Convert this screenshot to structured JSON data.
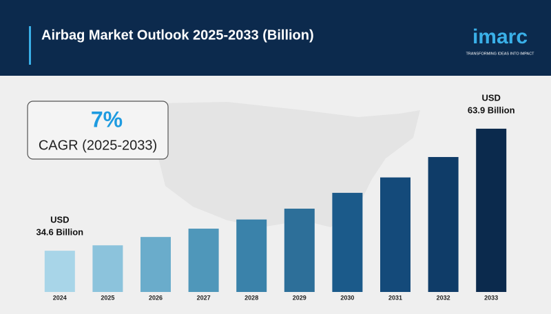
{
  "header": {
    "title": "Airbag Market Outlook 2025-2033 (Billion)",
    "logo": "imarc",
    "tagline": "TRANSFORMING IDEAS INTO IMPACT"
  },
  "cagr": {
    "value": "7%",
    "label": "CAGR (2025-2033)"
  },
  "chart_data": {
    "type": "bar",
    "categories": [
      "2024",
      "2025",
      "2026",
      "2027",
      "2028",
      "2029",
      "2030",
      "2031",
      "2032",
      "2033"
    ],
    "values": [
      34.6,
      35.9,
      37.9,
      39.9,
      42.1,
      44.7,
      48.5,
      52.2,
      57.1,
      63.9
    ],
    "value_labels": [
      "34.6 Billion",
      null,
      null,
      null,
      null,
      null,
      null,
      null,
      null,
      "63.9 Billion"
    ],
    "unit_label": "USD",
    "colors": [
      "#a8d5e8",
      "#8cc3dc",
      "#6aaccb",
      "#4f97ba",
      "#3a82aa",
      "#2d6f99",
      "#1b5a8a",
      "#144a7a",
      "#0f3c68",
      "#0b2a4d"
    ],
    "ylim": [
      24.7,
      70
    ]
  }
}
